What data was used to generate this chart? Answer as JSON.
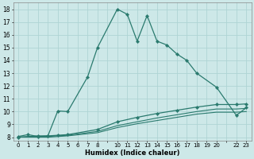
{
  "xlabel": "Humidex (Indice chaleur)",
  "ylabel": "",
  "bg_color": "#cde8e8",
  "grid_color": "#afd4d4",
  "line_color": "#2a7a6e",
  "xlim": [
    -0.5,
    23.5
  ],
  "ylim": [
    7.7,
    18.5
  ],
  "yticks": [
    8,
    9,
    10,
    11,
    12,
    13,
    14,
    15,
    16,
    17,
    18
  ],
  "xtick_labels": [
    "0",
    "1",
    "2",
    "3",
    "4",
    "5",
    "6",
    "7",
    "8",
    "",
    "10",
    "11",
    "12",
    "13",
    "14",
    "15",
    "16",
    "17",
    "18",
    "19",
    "20",
    "",
    "22",
    "23"
  ],
  "line1_x": [
    0,
    1,
    2,
    3,
    4,
    5,
    7,
    8,
    10,
    11,
    12,
    13,
    14,
    15,
    16,
    17,
    18,
    20,
    22,
    23
  ],
  "line1_y": [
    8.05,
    8.2,
    8.05,
    8.1,
    10.05,
    10.0,
    12.7,
    15.0,
    18.0,
    17.6,
    15.5,
    17.5,
    15.5,
    15.2,
    14.5,
    14.0,
    13.0,
    11.9,
    9.7,
    10.3
  ],
  "line2_x": [
    0,
    2,
    3,
    4,
    5,
    8,
    10,
    12,
    14,
    16,
    18,
    20,
    22,
    23
  ],
  "line2_y": [
    8.0,
    8.1,
    8.1,
    8.15,
    8.2,
    8.6,
    9.2,
    9.55,
    9.85,
    10.1,
    10.35,
    10.55,
    10.55,
    10.6
  ],
  "line3_x": [
    0,
    2,
    3,
    4,
    5,
    8,
    10,
    12,
    14,
    16,
    18,
    20,
    22,
    23
  ],
  "line3_y": [
    8.0,
    8.05,
    8.05,
    8.1,
    8.15,
    8.45,
    8.9,
    9.2,
    9.5,
    9.75,
    10.0,
    10.2,
    10.2,
    10.25
  ],
  "line4_x": [
    0,
    2,
    3,
    4,
    5,
    8,
    10,
    12,
    14,
    16,
    18,
    20,
    22,
    23
  ],
  "line4_y": [
    8.0,
    8.0,
    8.0,
    8.05,
    8.1,
    8.35,
    8.75,
    9.05,
    9.3,
    9.55,
    9.8,
    9.95,
    9.95,
    10.0
  ]
}
